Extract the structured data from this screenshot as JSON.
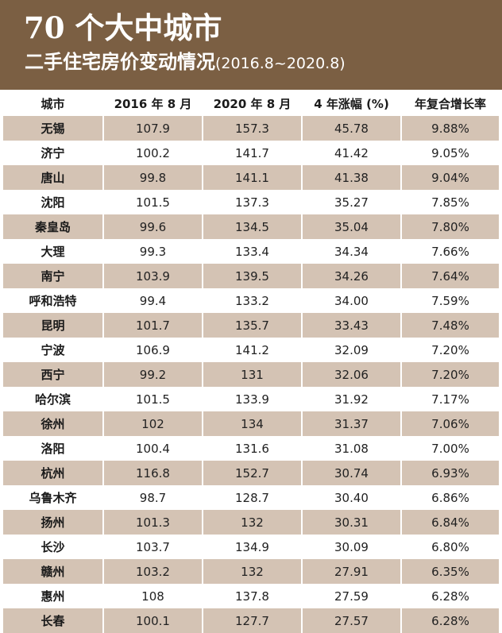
{
  "header": {
    "title": "70 个大中城市",
    "subtitle": "二手住宅房价变动情况",
    "range": "(2016.8~2020.8)"
  },
  "columns": [
    "城市",
    "2016 年 8 月",
    "2020 年 8 月",
    "4 年涨幅 (%)",
    "年复合增长率"
  ],
  "rows": [
    [
      "无锡",
      "107.9",
      "157.3",
      "45.78",
      "9.88%"
    ],
    [
      "济宁",
      "100.2",
      "141.7",
      "41.42",
      "9.05%"
    ],
    [
      "唐山",
      "99.8",
      "141.1",
      "41.38",
      "9.04%"
    ],
    [
      "沈阳",
      "101.5",
      "137.3",
      "35.27",
      "7.85%"
    ],
    [
      "秦皇岛",
      "99.6",
      "134.5",
      "35.04",
      "7.80%"
    ],
    [
      "大理",
      "99.3",
      "133.4",
      "34.34",
      "7.66%"
    ],
    [
      "南宁",
      "103.9",
      "139.5",
      "34.26",
      "7.64%"
    ],
    [
      "呼和浩特",
      "99.4",
      "133.2",
      "34.00",
      "7.59%"
    ],
    [
      "昆明",
      "101.7",
      "135.7",
      "33.43",
      "7.48%"
    ],
    [
      "宁波",
      "106.9",
      "141.2",
      "32.09",
      "7.20%"
    ],
    [
      "西宁",
      "99.2",
      "131",
      "32.06",
      "7.20%"
    ],
    [
      "哈尔滨",
      "101.5",
      "133.9",
      "31.92",
      "7.17%"
    ],
    [
      "徐州",
      "102",
      "134",
      "31.37",
      "7.06%"
    ],
    [
      "洛阳",
      "100.4",
      "131.6",
      "31.08",
      "7.00%"
    ],
    [
      "杭州",
      "116.8",
      "152.7",
      "30.74",
      "6.93%"
    ],
    [
      "乌鲁木齐",
      "98.7",
      "128.7",
      "30.40",
      "6.86%"
    ],
    [
      "扬州",
      "101.3",
      "132",
      "30.31",
      "6.84%"
    ],
    [
      "长沙",
      "103.7",
      "134.9",
      "30.09",
      "6.80%"
    ],
    [
      "赣州",
      "103.2",
      "132",
      "27.91",
      "6.35%"
    ],
    [
      "惠州",
      "108",
      "137.8",
      "27.59",
      "6.28%"
    ],
    [
      "长春",
      "100.1",
      "127.7",
      "27.57",
      "6.28%"
    ]
  ]
}
